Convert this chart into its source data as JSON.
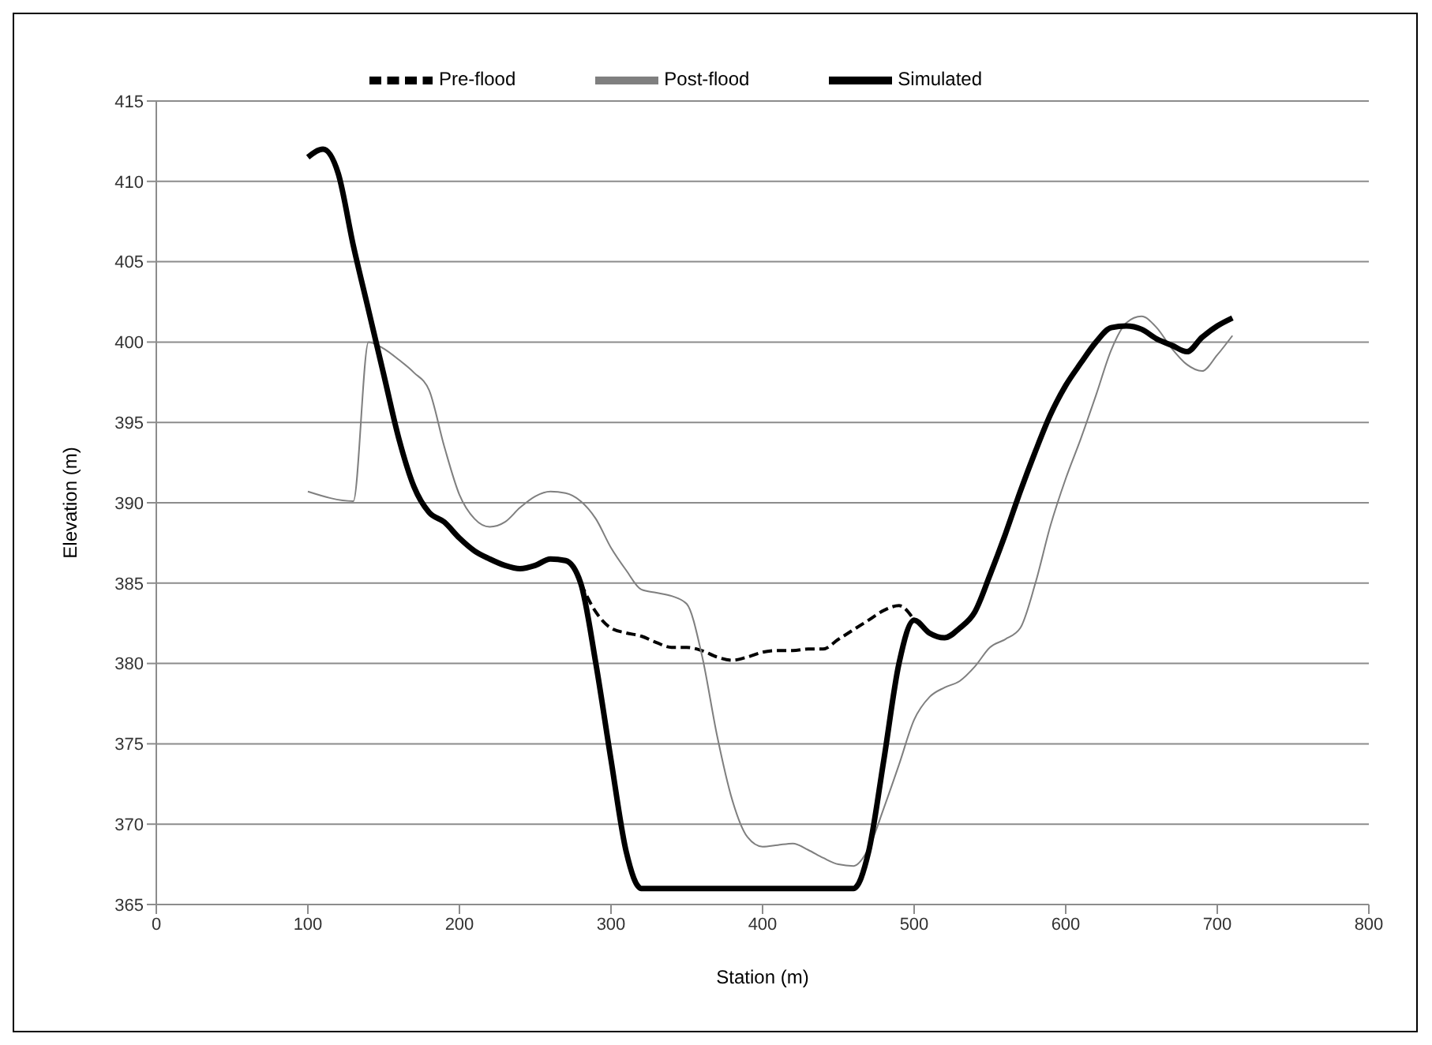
{
  "chart_data": {
    "type": "line",
    "xlabel": "Station (m)",
    "ylabel": "Elevation (m)",
    "xlim": [
      0,
      800
    ],
    "xticks": [
      0,
      100,
      200,
      300,
      400,
      500,
      600,
      700,
      800
    ],
    "ylim": [
      365,
      415
    ],
    "yticks": [
      365,
      370,
      375,
      380,
      385,
      390,
      395,
      400,
      405,
      410,
      415
    ],
    "grid": "y",
    "legend": "top",
    "marker": "none",
    "series": [
      {
        "name": "Pre-flood",
        "color": "#000000",
        "line_style": "dashed",
        "x": [
          280,
          290,
          300,
          310,
          320,
          330,
          340,
          350,
          360,
          370,
          380,
          390,
          400,
          410,
          420,
          430,
          440,
          450,
          460,
          470,
          480,
          490,
          500
        ],
        "values": [
          385,
          383.2,
          382.2,
          381.9,
          381.7,
          381.3,
          381,
          381,
          380.8,
          380.4,
          380.2,
          380.4,
          380.7,
          380.8,
          380.8,
          380.9,
          380.9,
          381.5,
          382.1,
          382.7,
          383.3,
          383.6,
          382.7
        ]
      },
      {
        "name": "Post-flood",
        "color": "#7f7f7f",
        "line_style": "solid",
        "x": [
          100,
          130,
          140,
          150,
          160,
          170,
          180,
          190,
          200,
          210,
          220,
          230,
          240,
          250,
          260,
          270,
          280,
          290,
          300,
          310,
          320,
          330,
          340,
          350,
          360,
          370,
          380,
          390,
          400,
          410,
          420,
          430,
          440,
          450,
          460,
          470,
          480,
          490,
          500,
          510,
          520,
          530,
          540,
          550,
          560,
          570,
          580,
          590,
          600,
          610,
          620,
          630,
          640,
          650,
          660,
          670,
          680,
          690,
          700,
          710
        ],
        "values": [
          390.7,
          390.1,
          400,
          399.6,
          398.9,
          398.1,
          397,
          393.5,
          390.5,
          389,
          388.5,
          388.8,
          389.7,
          390.4,
          390.7,
          390.6,
          390.1,
          389,
          387.2,
          385.8,
          384.6,
          384.4,
          384.2,
          383.7,
          380.5,
          375.5,
          371.5,
          369.2,
          368.6,
          368.7,
          368.8,
          368.4,
          367.9,
          367.5,
          367.4,
          368.5,
          371,
          373.7,
          376.5,
          377.9,
          378.5,
          378.9,
          379.8,
          381,
          381.5,
          382.2,
          385,
          388.6,
          391.5,
          394,
          396.7,
          399.5,
          401.2,
          401.6,
          400.9,
          399.6,
          398.6,
          398.2,
          399.2,
          400.4
        ]
      },
      {
        "name": "Simulated",
        "color": "#000000",
        "line_style": "solid",
        "x": [
          100,
          110,
          120,
          130,
          140,
          150,
          160,
          170,
          180,
          190,
          200,
          210,
          220,
          230,
          240,
          250,
          260,
          270,
          280,
          290,
          300,
          310,
          320,
          460,
          470,
          480,
          490,
          500,
          510,
          520,
          530,
          540,
          550,
          560,
          570,
          580,
          590,
          600,
          610,
          620,
          630,
          640,
          650,
          660,
          670,
          680,
          690,
          700,
          710
        ],
        "values": [
          411.5,
          412,
          410.5,
          406,
          402,
          398,
          394,
          391,
          389.4,
          388.8,
          387.8,
          387,
          386.5,
          386.1,
          385.9,
          386.1,
          386.5,
          386.4,
          385,
          380,
          374,
          368.3,
          366,
          366,
          368.3,
          374,
          380,
          382.7,
          381.9,
          381.6,
          382.2,
          383.2,
          385.5,
          388,
          390.7,
          393.2,
          395.5,
          397.3,
          398.7,
          400,
          400.9,
          401,
          400.8,
          400.2,
          399.8,
          399.4,
          400.3,
          401,
          401.5
        ]
      }
    ]
  }
}
